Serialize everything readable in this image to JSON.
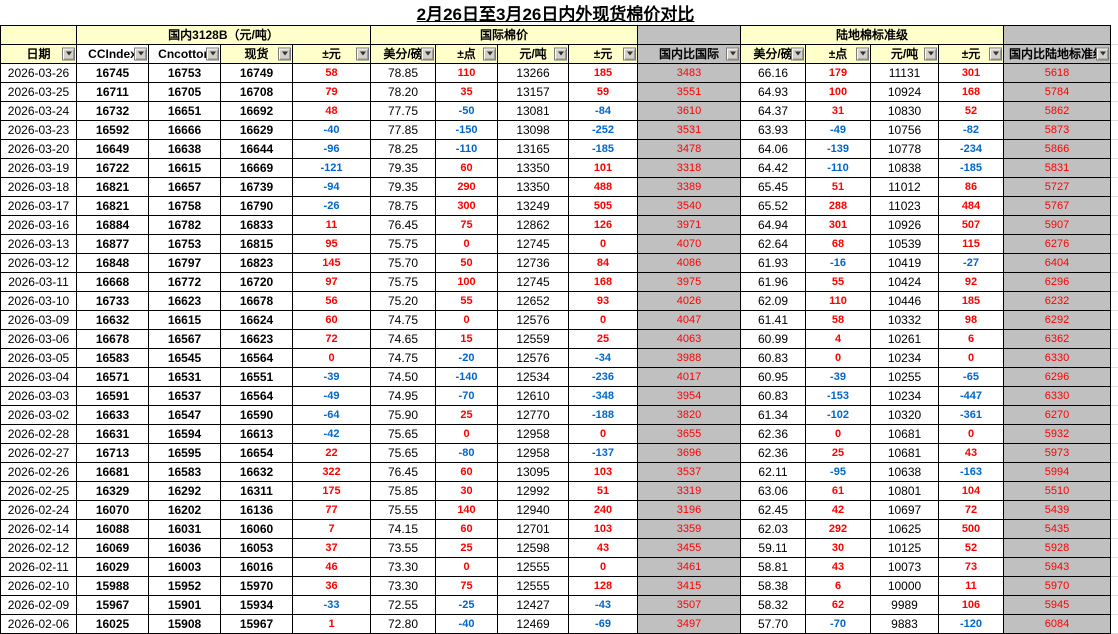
{
  "title": "2月26日至3月26日内外现货棉价对比",
  "header": {
    "groups": {
      "domestic": "国内3128B（元/吨）",
      "international": "国际棉价",
      "upland": "陆地棉标准级"
    },
    "columns": [
      "日期",
      "CCIndex",
      "Cncotton",
      "现货",
      "±元",
      "美分/磅",
      "±点",
      "元/吨",
      "±元",
      "国内比国际",
      "美分/磅",
      "±点",
      "元/吨",
      "±元",
      "国内比陆地标准级"
    ]
  },
  "colors": {
    "positive_text": "#ff0000",
    "negative_text": "#0066cc",
    "header_yellow": "#ffffcc",
    "ratio_gray": "#c0c0c0"
  },
  "rows": [
    [
      "2026-03-26",
      "16745",
      "16753",
      "16749",
      "58",
      "78.85",
      "110",
      "13266",
      "185",
      "3483",
      "66.16",
      "179",
      "11131",
      "301",
      "5618"
    ],
    [
      "2026-03-25",
      "16711",
      "16705",
      "16708",
      "79",
      "78.20",
      "35",
      "13157",
      "59",
      "3551",
      "64.93",
      "100",
      "10924",
      "168",
      "5784"
    ],
    [
      "2026-03-24",
      "16732",
      "16651",
      "16692",
      "48",
      "77.75",
      "-50",
      "13081",
      "-84",
      "3610",
      "64.37",
      "31",
      "10830",
      "52",
      "5862"
    ],
    [
      "2026-03-23",
      "16592",
      "16666",
      "16629",
      "-40",
      "77.85",
      "-150",
      "13098",
      "-252",
      "3531",
      "63.93",
      "-49",
      "10756",
      "-82",
      "5873"
    ],
    [
      "2026-03-20",
      "16649",
      "16638",
      "16644",
      "-96",
      "78.25",
      "-110",
      "13165",
      "-185",
      "3478",
      "64.06",
      "-139",
      "10778",
      "-234",
      "5866"
    ],
    [
      "2026-03-19",
      "16722",
      "16615",
      "16669",
      "-121",
      "79.35",
      "60",
      "13350",
      "101",
      "3318",
      "64.42",
      "-110",
      "10838",
      "-185",
      "5831"
    ],
    [
      "2026-03-18",
      "16821",
      "16657",
      "16739",
      "-94",
      "79.35",
      "290",
      "13350",
      "488",
      "3389",
      "65.45",
      "51",
      "11012",
      "86",
      "5727"
    ],
    [
      "2026-03-17",
      "16821",
      "16758",
      "16790",
      "-26",
      "78.75",
      "300",
      "13249",
      "505",
      "3540",
      "65.52",
      "288",
      "11023",
      "484",
      "5767"
    ],
    [
      "2026-03-16",
      "16884",
      "16782",
      "16833",
      "11",
      "76.45",
      "75",
      "12862",
      "126",
      "3971",
      "64.94",
      "301",
      "10926",
      "507",
      "5907"
    ],
    [
      "2026-03-13",
      "16877",
      "16753",
      "16815",
      "95",
      "75.75",
      "0",
      "12745",
      "0",
      "4070",
      "62.64",
      "68",
      "10539",
      "115",
      "6276"
    ],
    [
      "2026-03-12",
      "16848",
      "16797",
      "16823",
      "145",
      "75.70",
      "50",
      "12736",
      "84",
      "4086",
      "61.93",
      "-16",
      "10419",
      "-27",
      "6404"
    ],
    [
      "2026-03-11",
      "16668",
      "16772",
      "16720",
      "97",
      "75.75",
      "100",
      "12745",
      "168",
      "3975",
      "61.96",
      "55",
      "10424",
      "92",
      "6296"
    ],
    [
      "2026-03-10",
      "16733",
      "16623",
      "16678",
      "56",
      "75.20",
      "55",
      "12652",
      "93",
      "4026",
      "62.09",
      "110",
      "10446",
      "185",
      "6232"
    ],
    [
      "2026-03-09",
      "16632",
      "16615",
      "16624",
      "60",
      "74.75",
      "0",
      "12576",
      "0",
      "4047",
      "61.41",
      "58",
      "10332",
      "98",
      "6292"
    ],
    [
      "2026-03-06",
      "16678",
      "16567",
      "16623",
      "72",
      "74.65",
      "15",
      "12559",
      "25",
      "4063",
      "60.99",
      "4",
      "10261",
      "6",
      "6362"
    ],
    [
      "2026-03-05",
      "16583",
      "16545",
      "16564",
      "0",
      "74.75",
      "-20",
      "12576",
      "-34",
      "3988",
      "60.83",
      "0",
      "10234",
      "0",
      "6330"
    ],
    [
      "2026-03-04",
      "16571",
      "16531",
      "16551",
      "-39",
      "74.50",
      "-140",
      "12534",
      "-236",
      "4017",
      "60.95",
      "-39",
      "10255",
      "-65",
      "6296"
    ],
    [
      "2026-03-03",
      "16591",
      "16537",
      "16564",
      "-49",
      "74.95",
      "-70",
      "12610",
      "-348",
      "3954",
      "60.83",
      "-153",
      "10234",
      "-447",
      "6330"
    ],
    [
      "2026-03-02",
      "16633",
      "16547",
      "16590",
      "-64",
      "75.90",
      "25",
      "12770",
      "-188",
      "3820",
      "61.34",
      "-102",
      "10320",
      "-361",
      "6270"
    ],
    [
      "2026-02-28",
      "16631",
      "16594",
      "16613",
      "-42",
      "75.65",
      "0",
      "12958",
      "0",
      "3655",
      "62.36",
      "0",
      "10681",
      "0",
      "5932"
    ],
    [
      "2026-02-27",
      "16713",
      "16595",
      "16654",
      "22",
      "75.65",
      "-80",
      "12958",
      "-137",
      "3696",
      "62.36",
      "25",
      "10681",
      "43",
      "5973"
    ],
    [
      "2026-02-26",
      "16681",
      "16583",
      "16632",
      "322",
      "76.45",
      "60",
      "13095",
      "103",
      "3537",
      "62.11",
      "-95",
      "10638",
      "-163",
      "5994"
    ],
    [
      "2026-02-25",
      "16329",
      "16292",
      "16311",
      "175",
      "75.85",
      "30",
      "12992",
      "51",
      "3319",
      "63.06",
      "61",
      "10801",
      "104",
      "5510"
    ],
    [
      "2026-02-24",
      "16070",
      "16202",
      "16136",
      "77",
      "75.55",
      "140",
      "12940",
      "240",
      "3196",
      "62.45",
      "42",
      "10697",
      "72",
      "5439"
    ],
    [
      "2026-02-14",
      "16088",
      "16031",
      "16060",
      "7",
      "74.15",
      "60",
      "12701",
      "103",
      "3359",
      "62.03",
      "292",
      "10625",
      "500",
      "5435"
    ],
    [
      "2026-02-12",
      "16069",
      "16036",
      "16053",
      "37",
      "73.55",
      "25",
      "12598",
      "43",
      "3455",
      "59.11",
      "30",
      "10125",
      "52",
      "5928"
    ],
    [
      "2026-02-11",
      "16029",
      "16003",
      "16016",
      "46",
      "73.30",
      "0",
      "12555",
      "0",
      "3461",
      "58.81",
      "43",
      "10073",
      "73",
      "5943"
    ],
    [
      "2026-02-10",
      "15988",
      "15952",
      "15970",
      "36",
      "73.30",
      "75",
      "12555",
      "128",
      "3415",
      "58.38",
      "6",
      "10000",
      "11",
      "5970"
    ],
    [
      "2026-02-09",
      "15967",
      "15901",
      "15934",
      "-33",
      "72.55",
      "-25",
      "12427",
      "-43",
      "3507",
      "58.32",
      "62",
      "9989",
      "106",
      "5945"
    ],
    [
      "2026-02-06",
      "16025",
      "15908",
      "15967",
      "1",
      "72.80",
      "-40",
      "12469",
      "-69",
      "3497",
      "57.70",
      "-70",
      "9883",
      "-120",
      "6084"
    ]
  ]
}
